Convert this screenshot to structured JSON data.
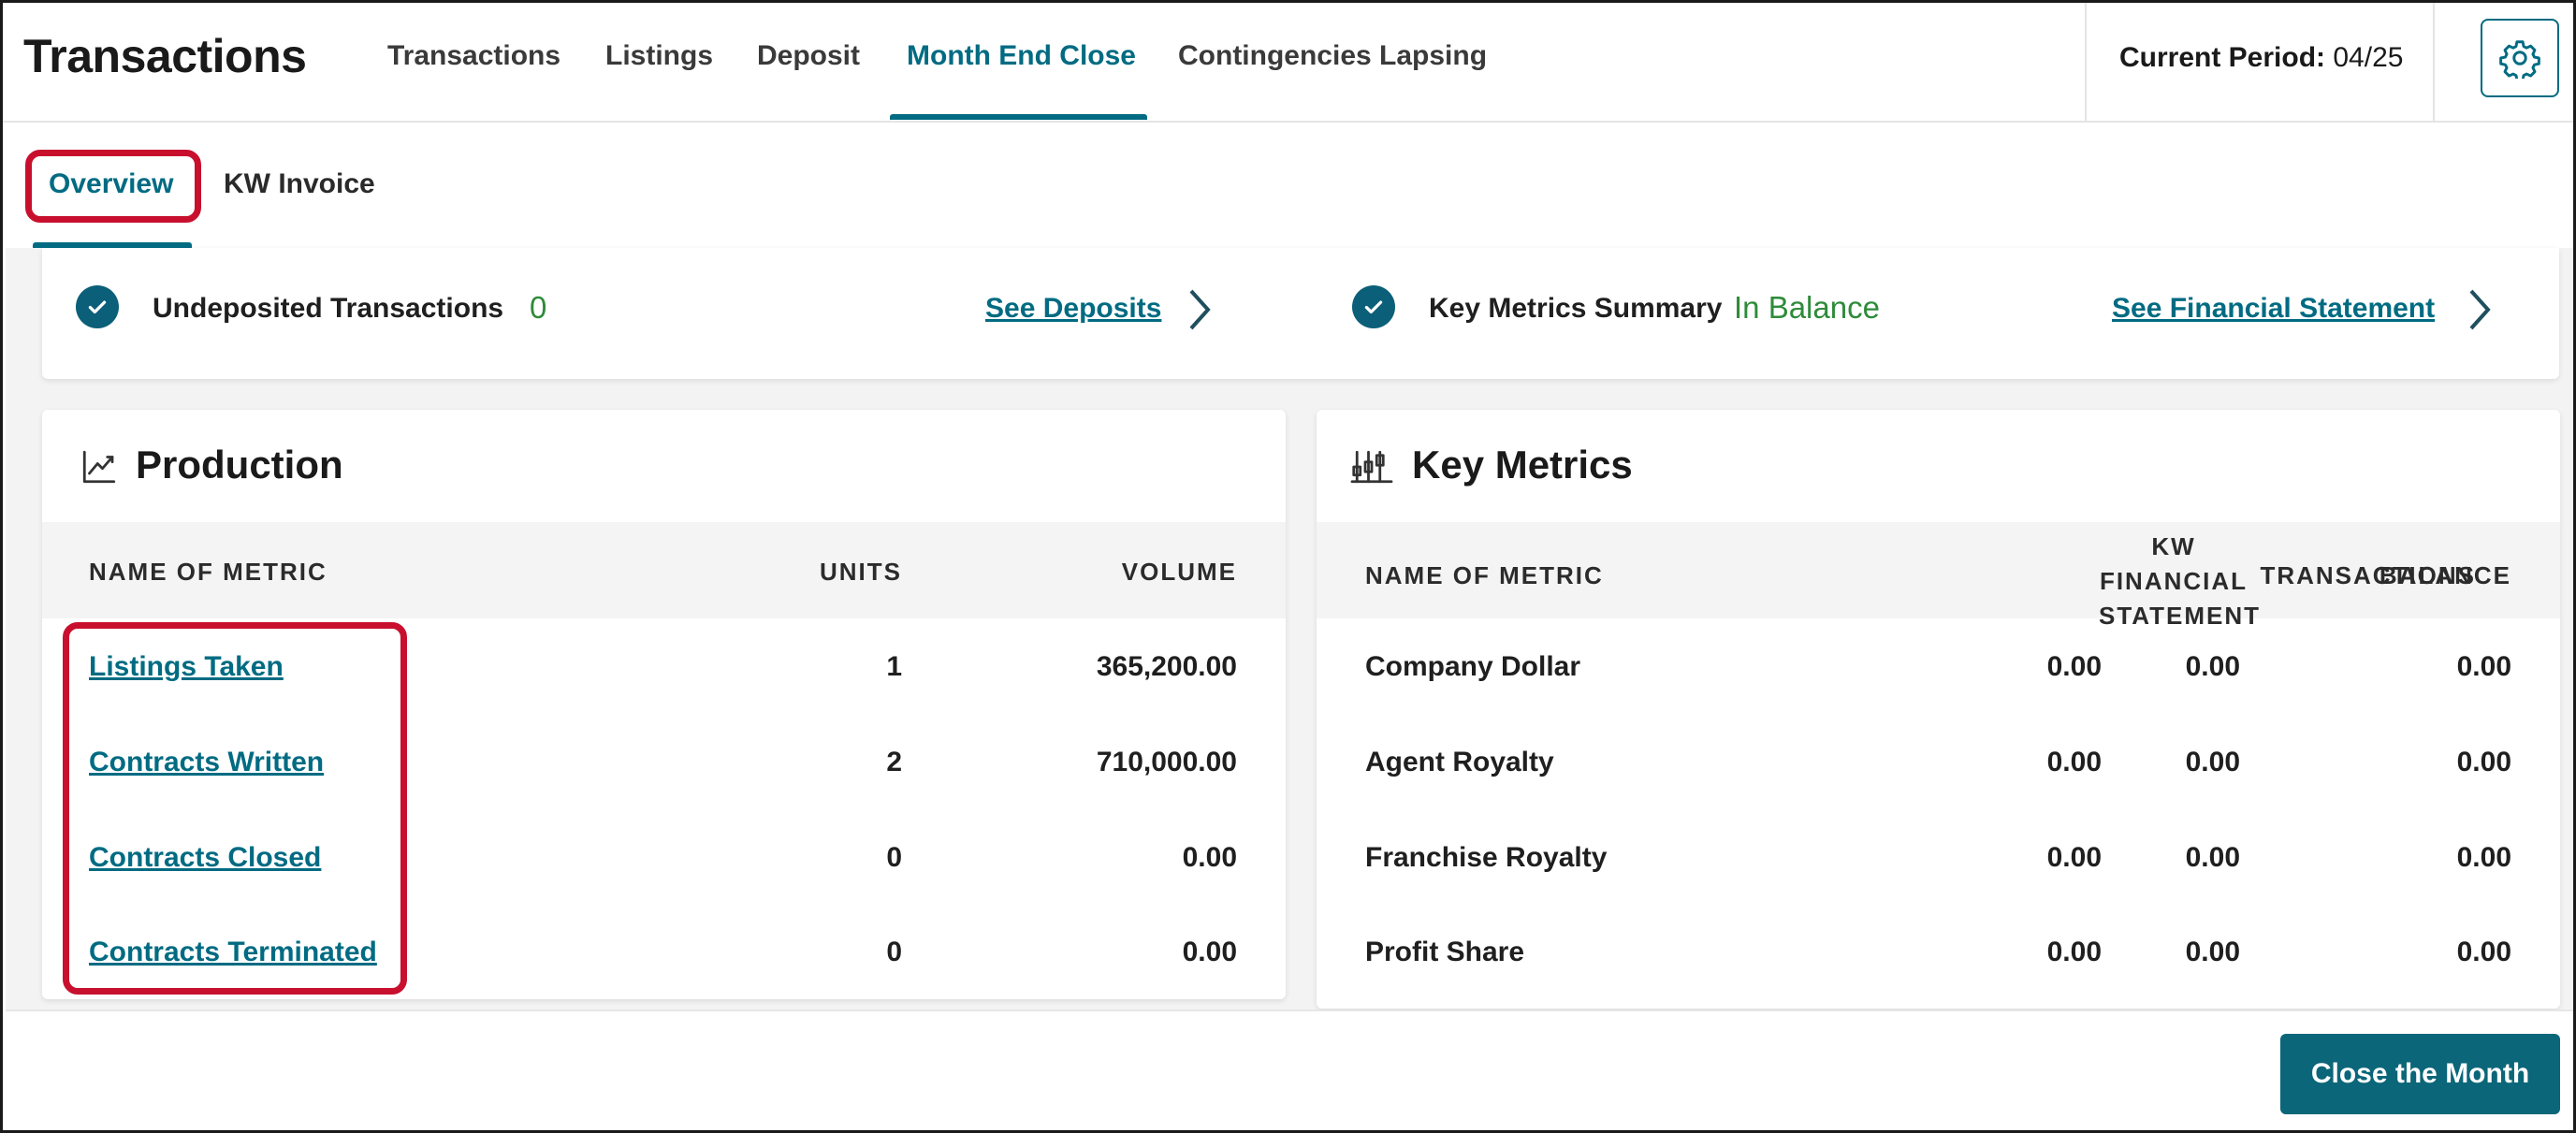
{
  "header": {
    "app_title": "Transactions",
    "nav": [
      {
        "label": "Transactions"
      },
      {
        "label": "Listings"
      },
      {
        "label": "Deposit"
      },
      {
        "label": "Month End Close"
      },
      {
        "label": "Contingencies Lapsing"
      }
    ],
    "active_nav": "Month End Close",
    "period_label": "Current Period:",
    "period_value": "04/25",
    "settings_icon": "gear-icon"
  },
  "subtabs": {
    "items": [
      {
        "label": "Overview"
      },
      {
        "label": "KW Invoice"
      }
    ],
    "active": "Overview"
  },
  "summary": {
    "undeposited_label": "Undeposited Transactions",
    "undeposited_value": "0",
    "deposits_link": "See Deposits",
    "key_metrics_label": "Key Metrics Summary",
    "key_metrics_value": "In Balance",
    "financial_link": "See Financial Statement"
  },
  "production": {
    "title": "Production",
    "columns": [
      "NAME OF METRIC",
      "UNITS",
      "VOLUME"
    ],
    "rows": [
      {
        "name": "Listings Taken",
        "units": "1",
        "volume": "365,200.00"
      },
      {
        "name": "Contracts Written",
        "units": "2",
        "volume": "710,000.00"
      },
      {
        "name": "Contracts Closed",
        "units": "0",
        "volume": "0.00"
      },
      {
        "name": "Contracts Terminated",
        "units": "0",
        "volume": "0.00"
      }
    ]
  },
  "key_metrics": {
    "title": "Key Metrics",
    "columns": [
      "NAME OF METRIC",
      "TRANSACTIONS",
      "KW",
      "FINANCIAL",
      "STATEMENT",
      "BALANCE"
    ],
    "rows": [
      {
        "name": "Company Dollar",
        "transactions": "0.00",
        "kw": "0.00",
        "balance": "0.00"
      },
      {
        "name": "Agent Royalty",
        "transactions": "0.00",
        "kw": "0.00",
        "balance": "0.00"
      },
      {
        "name": "Franchise Royalty",
        "transactions": "0.00",
        "kw": "0.00",
        "balance": "0.00"
      },
      {
        "name": "Profit Share",
        "transactions": "0.00",
        "kw": "0.00",
        "balance": "0.00"
      }
    ]
  },
  "footer": {
    "close_button": "Close the Month"
  },
  "colors": {
    "accent": "#006b82",
    "highlight": "#c8102e",
    "success": "#2e8b3a",
    "button": "#0b6679"
  }
}
